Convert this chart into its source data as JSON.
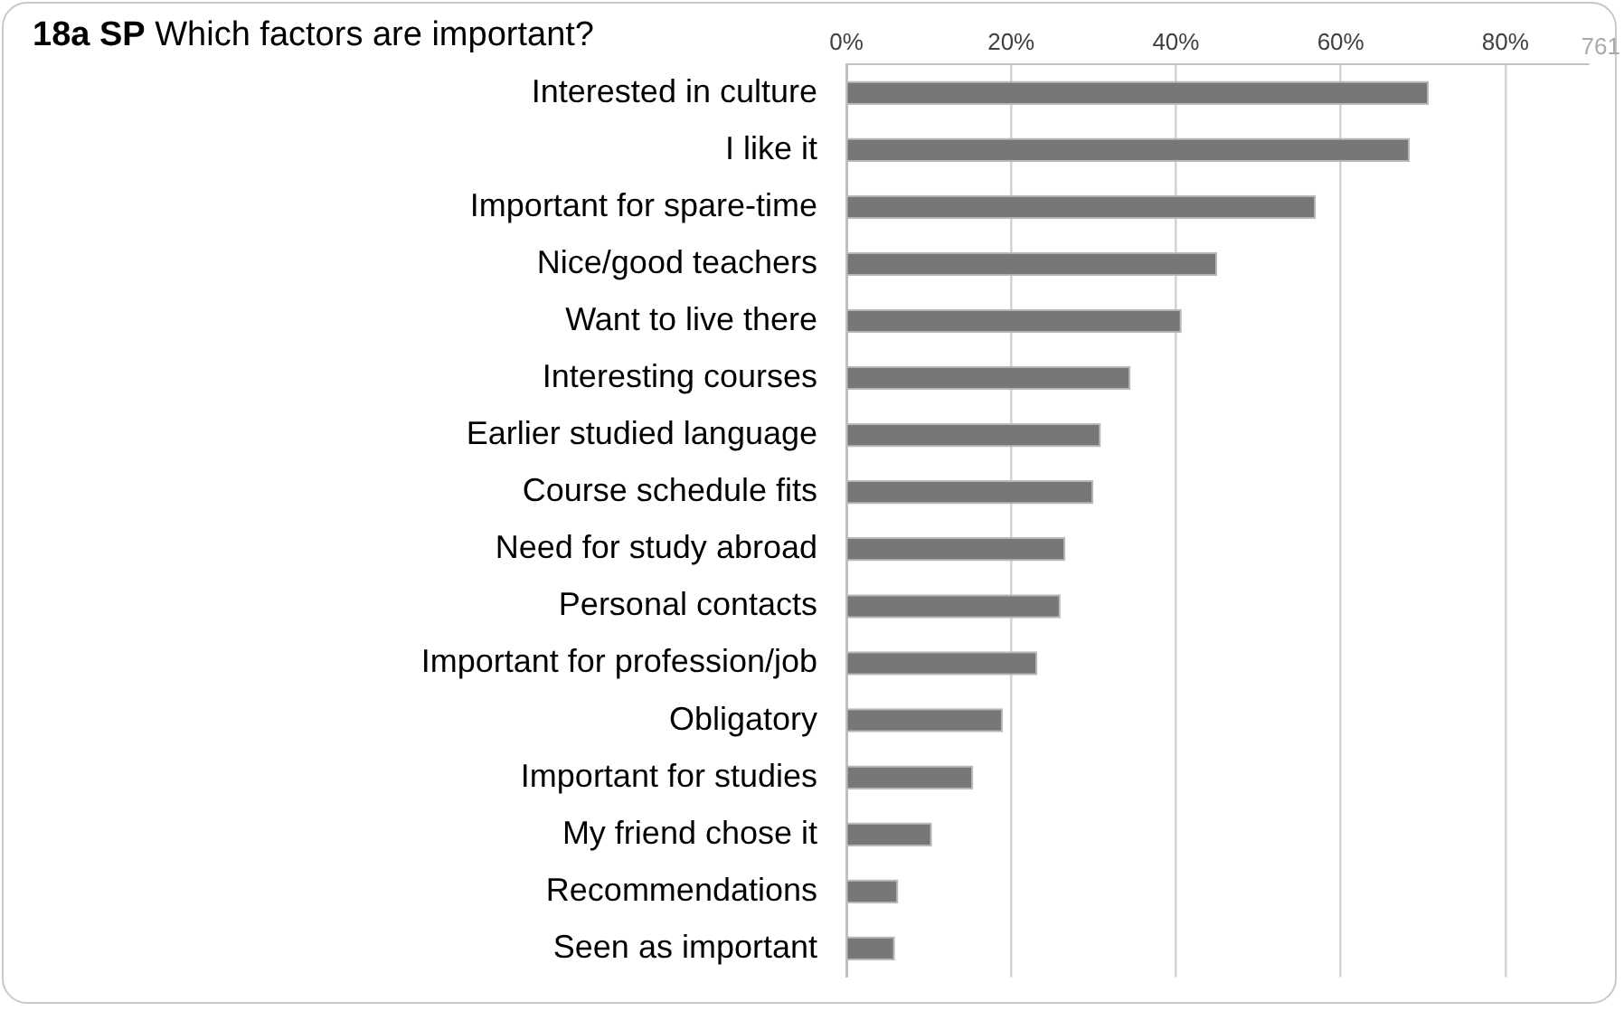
{
  "chart_data": {
    "type": "bar",
    "orientation": "horizontal",
    "title": "18a SP Which factors are important?",
    "categories": [
      "Interested in culture",
      "I like it",
      "Important for spare-time",
      "Nice/good teachers",
      "Want to live there",
      "Interesting courses",
      "Earlier studied language",
      "Course schedule fits",
      "Need for study abroad",
      "Personal contacts",
      "Important for profession/job",
      "Obligatory",
      "Important for studies",
      "My friend chose it",
      "Recommendations",
      "Seen as important"
    ],
    "values": [
      70.7,
      68.4,
      57.0,
      45.0,
      40.7,
      34.5,
      30.9,
      30.0,
      26.6,
      26.0,
      23.2,
      19.0,
      15.4,
      10.4,
      6.3,
      5.9
    ],
    "color": "#777777",
    "xlim": [
      0,
      90
    ],
    "xticks": [
      {
        "value": 0,
        "label": "0%"
      },
      {
        "value": 20,
        "label": "20%"
      },
      {
        "value": 40,
        "label": "40%"
      },
      {
        "value": 60,
        "label": "60%"
      },
      {
        "value": 80,
        "label": "80%"
      }
    ],
    "grid": "x",
    "legend": false,
    "annotations": [
      "761"
    ]
  }
}
